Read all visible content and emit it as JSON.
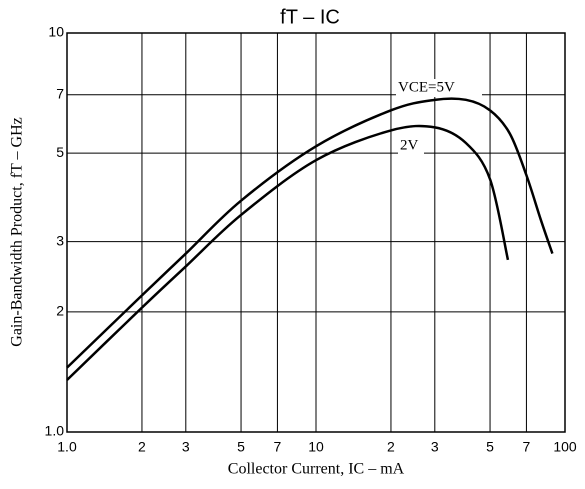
{
  "chart_data": {
    "type": "line",
    "title": "fT – IC",
    "xlabel": "Collector Current, IC – mA",
    "ylabel": "Gain-Bandwidth Product, fT – GHz",
    "log_x": true,
    "log_y": true,
    "grid": true,
    "xlim": [
      1,
      100
    ],
    "xticks": [
      {
        "value": 1,
        "label": "1.0"
      },
      2,
      3,
      5,
      7,
      10,
      {
        "value": 20,
        "label": "2"
      },
      {
        "value": 30,
        "label": "3"
      },
      {
        "value": 50,
        "label": "5"
      },
      {
        "value": 70,
        "label": "7"
      },
      100
    ],
    "ylim": [
      1,
      10
    ],
    "yticks": [
      {
        "value": 1,
        "label": "1.0"
      },
      2,
      3,
      5,
      7,
      10
    ],
    "series": [
      {
        "name": "VCE=5V",
        "color": "#000000",
        "x": [
          1,
          2,
          3,
          5,
          10,
          20,
          30,
          40,
          50,
          60,
          70,
          80,
          89
        ],
        "values": [
          1.45,
          2.2,
          2.8,
          3.8,
          5.2,
          6.4,
          6.8,
          6.8,
          6.4,
          5.6,
          4.4,
          3.4,
          2.8
        ]
      },
      {
        "name": "2V",
        "color": "#000000",
        "x": [
          1,
          2,
          3,
          5,
          10,
          20,
          30,
          40,
          50,
          59
        ],
        "values": [
          1.35,
          2.05,
          2.6,
          3.5,
          4.8,
          5.7,
          5.8,
          5.3,
          4.3,
          2.7
        ]
      }
    ]
  }
}
